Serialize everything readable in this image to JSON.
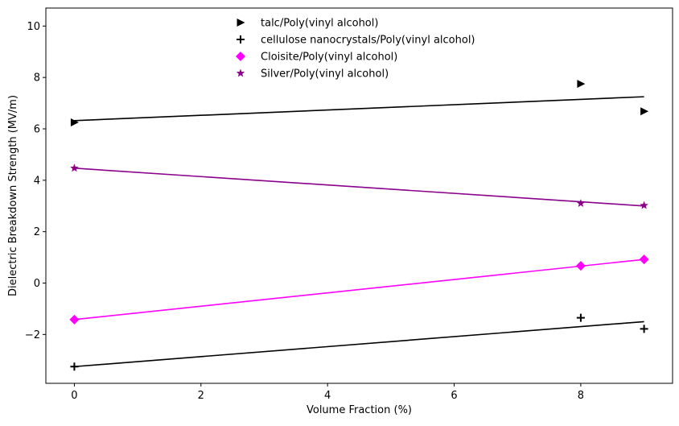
{
  "chart_data": {
    "type": "scatter",
    "xlabel": "Volume Fraction (%)",
    "ylabel": "Dielectric Breakdown Strength (MV/m)",
    "xlim": [
      -0.45,
      9.45
    ],
    "ylim": [
      -3.9,
      10.7
    ],
    "xticks": [
      0,
      2,
      4,
      6,
      8
    ],
    "yticks": [
      -2,
      0,
      2,
      4,
      6,
      8,
      10
    ],
    "xtick_labels": [
      "0",
      "2",
      "4",
      "6",
      "8"
    ],
    "ytick_labels": [
      "−2",
      "0",
      "2",
      "4",
      "6",
      "8",
      "10"
    ],
    "grid": false,
    "legend_position": "top-center",
    "series": [
      {
        "name": "talc/Poly(vinyl alcohol)",
        "marker": "triangle-right",
        "color": "#000000",
        "points": [
          [
            0,
            6.25
          ],
          [
            8,
            7.75
          ],
          [
            9,
            6.68
          ]
        ],
        "fit": [
          [
            0,
            6.32
          ],
          [
            9,
            7.25
          ]
        ]
      },
      {
        "name": "cellulose nanocrystals/Poly(vinyl alcohol)",
        "marker": "plus",
        "color": "#000000",
        "points": [
          [
            0,
            -3.25
          ],
          [
            8,
            -1.35
          ],
          [
            9,
            -1.78
          ]
        ],
        "fit": [
          [
            0,
            -3.25
          ],
          [
            9,
            -1.5
          ]
        ]
      },
      {
        "name": "Cloisite/Poly(vinyl alcohol)",
        "marker": "diamond",
        "color": "#ff00ff",
        "points": [
          [
            0,
            -1.42
          ],
          [
            8,
            0.67
          ],
          [
            9,
            0.92
          ]
        ],
        "fit": [
          [
            0,
            -1.42
          ],
          [
            9,
            0.92
          ]
        ]
      },
      {
        "name": "Silver/Poly(vinyl alcohol)",
        "marker": "star",
        "color": "#8b008b",
        "points": [
          [
            0,
            4.47
          ],
          [
            8,
            3.1
          ],
          [
            9,
            3.02
          ]
        ],
        "fit": [
          [
            0,
            4.47
          ],
          [
            9,
            3.0
          ]
        ]
      }
    ]
  }
}
